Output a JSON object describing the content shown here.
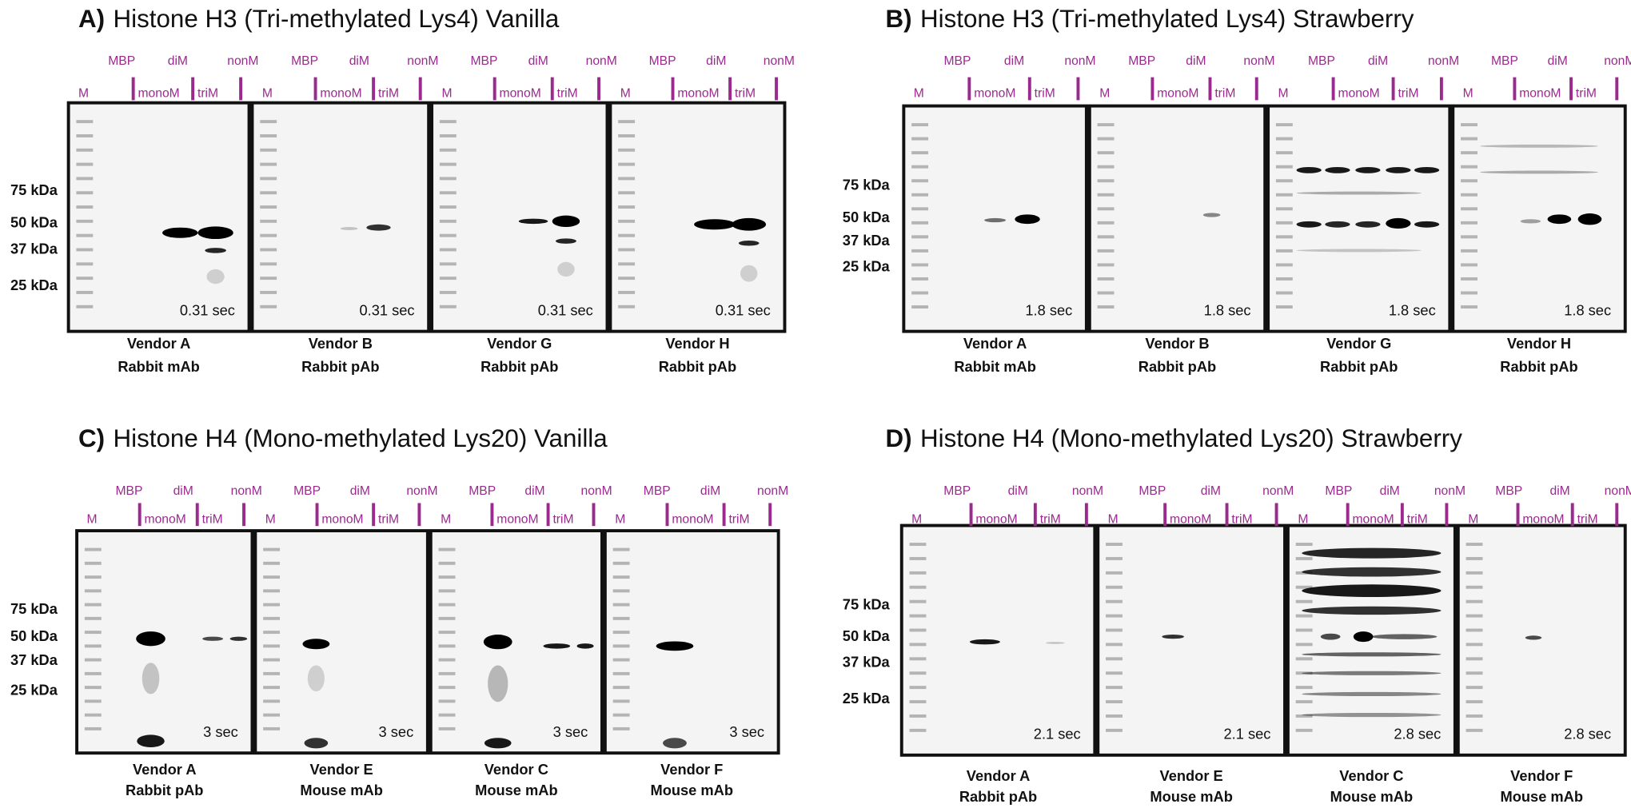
{
  "panels": [
    {
      "letter": "A)",
      "title": "Histone H3 (Tri-methylated Lys4) Vanilla",
      "lanes": [
        "M",
        "MBP",
        "monoM",
        "diM",
        "triM",
        "nonM"
      ],
      "markers": [
        "75 kDa",
        "50 kDa",
        "37 kDa",
        "25 kDa"
      ],
      "blots": [
        {
          "exposure": "0.31 sec",
          "vendor": "Vendor A",
          "antibody": "Rabbit mAb"
        },
        {
          "exposure": "0.31 sec",
          "vendor": "Vendor B",
          "antibody": "Rabbit pAb"
        },
        {
          "exposure": "0.31 sec",
          "vendor": "Vendor G",
          "antibody": "Rabbit pAb"
        },
        {
          "exposure": "0.31 sec",
          "vendor": "Vendor H",
          "antibody": "Rabbit pAb"
        }
      ]
    },
    {
      "letter": "B)",
      "title": "Histone H3 (Tri-methylated Lys4) Strawberry",
      "lanes": [
        "M",
        "MBP",
        "monoM",
        "diM",
        "triM",
        "nonM"
      ],
      "markers": [
        "75 kDa",
        "50 kDa",
        "37 kDa",
        "25 kDa"
      ],
      "blots": [
        {
          "exposure": "1.8 sec",
          "vendor": "Vendor A",
          "antibody": "Rabbit mAb"
        },
        {
          "exposure": "1.8 sec",
          "vendor": "Vendor B",
          "antibody": "Rabbit pAb"
        },
        {
          "exposure": "1.8 sec",
          "vendor": "Vendor G",
          "antibody": "Rabbit pAb"
        },
        {
          "exposure": "1.8 sec",
          "vendor": "Vendor H",
          "antibody": "Rabbit pAb"
        }
      ]
    },
    {
      "letter": "C)",
      "title": "Histone H4 (Mono-methylated Lys20) Vanilla",
      "lanes": [
        "M",
        "MBP",
        "monoM",
        "diM",
        "triM",
        "nonM"
      ],
      "markers": [
        "75 kDa",
        "50 kDa",
        "37 kDa",
        "25 kDa"
      ],
      "blots": [
        {
          "exposure": "3 sec",
          "vendor": "Vendor A",
          "antibody": "Rabbit pAb"
        },
        {
          "exposure": "3 sec",
          "vendor": "Vendor E",
          "antibody": "Mouse mAb"
        },
        {
          "exposure": "3 sec",
          "vendor": "Vendor C",
          "antibody": "Mouse mAb"
        },
        {
          "exposure": "3 sec",
          "vendor": "Vendor F",
          "antibody": "Mouse mAb"
        }
      ]
    },
    {
      "letter": "D)",
      "title": "Histone H4 (Mono-methylated Lys20) Strawberry",
      "lanes": [
        "M",
        "MBP",
        "monoM",
        "diM",
        "triM",
        "nonM"
      ],
      "markers": [
        "75 kDa",
        "50 kDa",
        "37 kDa",
        "25 kDa"
      ],
      "blots": [
        {
          "exposure": "2.1 sec",
          "vendor": "Vendor A",
          "antibody": "Rabbit pAb"
        },
        {
          "exposure": "2.1 sec",
          "vendor": "Vendor E",
          "antibody": "Mouse mAb"
        },
        {
          "exposure": "2.8 sec",
          "vendor": "Vendor C",
          "antibody": "Mouse mAb"
        },
        {
          "exposure": "2.8 sec",
          "vendor": "Vendor F",
          "antibody": "Mouse mAb"
        }
      ]
    }
  ]
}
